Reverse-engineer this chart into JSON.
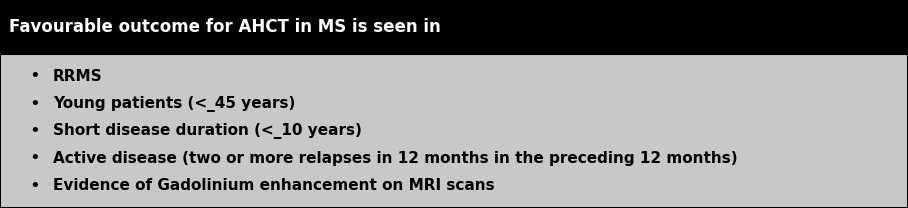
{
  "header_text": "Favourable outcome for AHCT in MS is seen in",
  "header_bg": "#000000",
  "header_text_color": "#ffffff",
  "body_bg": "#c8c8c8",
  "body_text_color": "#000000",
  "bullet_items": [
    "RRMS",
    "Young patients (<_45 years)",
    "Short disease duration (<_10 years)",
    "Active disease (two or more relapses in 12 months in the preceding 12 months)",
    "Evidence of Gadolinium enhancement on MRI scans"
  ],
  "border_color": "#000000",
  "font_size_header": 12,
  "font_size_body": 11,
  "figure_width": 9.08,
  "figure_height": 2.08,
  "dpi": 100
}
